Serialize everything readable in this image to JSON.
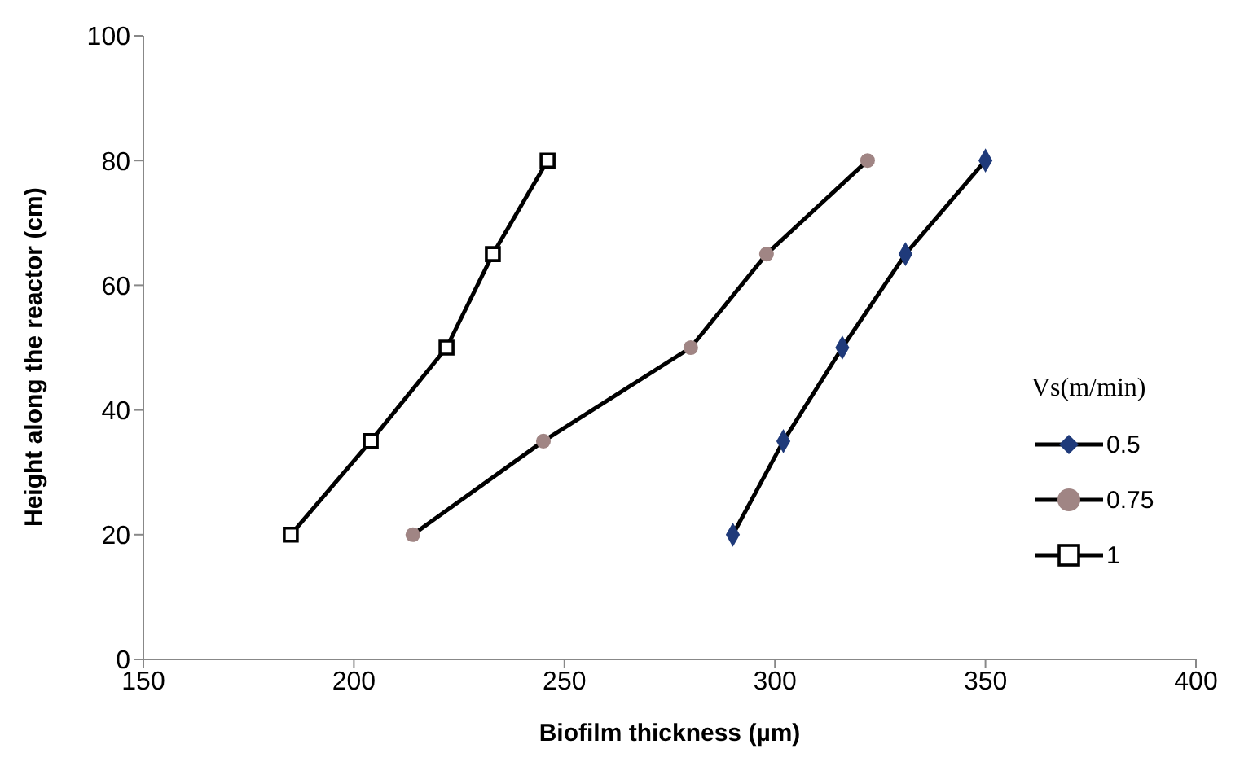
{
  "chart_data": {
    "type": "line",
    "xlabel": "Biofilm thickness (µm)",
    "ylabel": "Height along the reactor (cm)",
    "legend_title": "Vs(m/min)",
    "xlim": [
      150,
      400
    ],
    "xticks": [
      150,
      200,
      250,
      300,
      350,
      400
    ],
    "ylim": [
      0,
      100
    ],
    "yticks": [
      0,
      20,
      40,
      60,
      80,
      100
    ],
    "grid": false,
    "legend": "right",
    "line_style": "solid",
    "series": [
      {
        "name": "0.5",
        "color": "#1f3a7a",
        "marker": "diamond",
        "x": [
          290,
          302,
          316,
          331,
          350
        ],
        "values": [
          20,
          35,
          50,
          65,
          80
        ]
      },
      {
        "name": "0.75",
        "color": "#a08584",
        "marker": "circle",
        "x": [
          214,
          245,
          280,
          298,
          322
        ],
        "values": [
          20,
          35,
          50,
          65,
          80
        ]
      },
      {
        "name": "1",
        "color": "#000000",
        "marker": "square",
        "x": [
          185,
          204,
          222,
          233,
          246
        ],
        "values": [
          20,
          35,
          50,
          65,
          80
        ]
      }
    ]
  }
}
